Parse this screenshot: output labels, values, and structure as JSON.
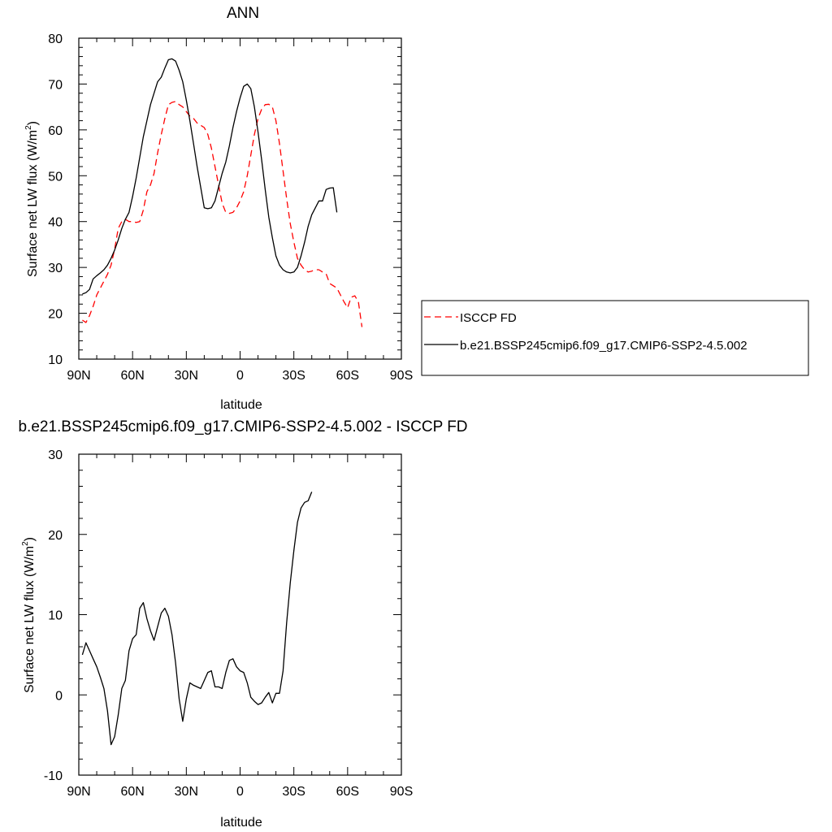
{
  "colors": {
    "obs": "#ff0000",
    "model": "#000000"
  },
  "chart_data": [
    {
      "type": "line",
      "title": "ANN",
      "xlabel": "latitude",
      "ylabel": "Surface net LW flux (W/m",
      "ylabel_sup": "2",
      "ylabel_close": ")",
      "xlim": [
        90,
        -90
      ],
      "ylim": [
        10,
        80
      ],
      "xticks": [
        90,
        60,
        30,
        0,
        -30,
        -60,
        -90
      ],
      "xtick_labels": [
        "90N",
        "60N",
        "30N",
        "0",
        "30S",
        "60S",
        "90S"
      ],
      "yticks": [
        10,
        20,
        30,
        40,
        50,
        60,
        70,
        80
      ],
      "ytick_labels": [
        "10",
        "20",
        "30",
        "40",
        "50",
        "60",
        "70",
        "80"
      ],
      "legend": {
        "placement": "right"
      },
      "series": [
        {
          "name": "ISCCP FD",
          "style": "dashed",
          "color": "#ff0000",
          "x": [
            88,
            86,
            84,
            82,
            80,
            78,
            76,
            74,
            72,
            70,
            68,
            66,
            64,
            62,
            60,
            58,
            56,
            54,
            52,
            50,
            48,
            46,
            44,
            42,
            40,
            38,
            36,
            34,
            32,
            30,
            28,
            26,
            24,
            22,
            20,
            18,
            16,
            14,
            12,
            10,
            8,
            6,
            4,
            2,
            0,
            -2,
            -4,
            -6,
            -8,
            -10,
            -12,
            -14,
            -16,
            -18,
            -20,
            -22,
            -24,
            -26,
            -28,
            -30,
            -32,
            -34,
            -36,
            -38,
            -40,
            -42,
            -44,
            -46,
            -48,
            -50,
            -52,
            -54,
            -56,
            -58,
            -60,
            -62,
            -64,
            -66,
            -68,
            -70,
            -72,
            -74,
            -76,
            -78,
            -80,
            -82,
            -84,
            -86,
            -88
          ],
          "values": [
            18.5,
            18.0,
            19.5,
            21.5,
            24.0,
            25.5,
            27.0,
            28.5,
            30.5,
            34.0,
            38.5,
            40.0,
            40.5,
            40.0,
            40.0,
            39.8,
            40.0,
            42.5,
            46.5,
            48.0,
            50.5,
            55.0,
            59.0,
            62.5,
            65.5,
            66.0,
            66.2,
            65.5,
            65.0,
            64.0,
            63.0,
            62.5,
            61.5,
            61.0,
            60.5,
            59.0,
            56.0,
            52.0,
            48.0,
            44.0,
            42.0,
            41.8,
            42.0,
            43.0,
            44.5,
            46.5,
            50.0,
            54.5,
            59.0,
            62.5,
            64.5,
            65.5,
            65.6,
            65.0,
            62.0,
            57.0,
            51.0,
            45.0,
            39.5,
            35.5,
            32.0,
            30.5,
            29.5,
            29.0,
            29.2,
            29.5,
            29.5,
            29.0,
            28.6,
            26.5,
            26.0,
            25.5,
            24.0,
            22.5,
            21.2,
            23.5,
            23.8,
            22.5,
            17.0,
            null,
            null,
            null,
            null,
            null,
            null,
            null,
            null,
            null,
            null
          ]
        },
        {
          "name": "b.e21.BSSP245cmip6.f09_g17.CMIP6-SSP2-4.5.002",
          "style": "solid",
          "color": "#000000",
          "x": [
            88,
            86,
            84,
            82,
            80,
            78,
            76,
            74,
            72,
            70,
            68,
            66,
            64,
            62,
            60,
            58,
            56,
            54,
            52,
            50,
            48,
            46,
            44,
            42,
            40,
            38,
            36,
            34,
            32,
            30,
            28,
            26,
            24,
            22,
            20,
            18,
            16,
            14,
            12,
            10,
            8,
            6,
            4,
            2,
            0,
            -2,
            -4,
            -6,
            -8,
            -10,
            -12,
            -14,
            -16,
            -18,
            -20,
            -22,
            -24,
            -26,
            -28,
            -30,
            -32,
            -34,
            -36,
            -38,
            -40,
            -42,
            -44,
            -46,
            -48,
            -50,
            -52,
            -54,
            -56,
            -58,
            -60,
            -62,
            -64,
            -66,
            -68,
            -70,
            -72,
            -74,
            -76,
            -78,
            -80,
            -82,
            -84,
            -86,
            -88
          ],
          "values": [
            24.2,
            24.5,
            25.2,
            27.5,
            28.2,
            28.8,
            29.5,
            30.5,
            32.0,
            33.8,
            36.0,
            38.5,
            40.5,
            42.0,
            45.5,
            49.5,
            54.0,
            58.5,
            62.0,
            65.5,
            68.0,
            70.5,
            71.5,
            73.5,
            75.3,
            75.5,
            75.0,
            73.0,
            70.5,
            66.5,
            62.0,
            57.0,
            52.0,
            47.5,
            43.0,
            42.8,
            43.0,
            44.5,
            47.5,
            50.5,
            53.0,
            56.5,
            60.5,
            64.0,
            67.0,
            69.5,
            70.0,
            69.0,
            65.0,
            59.5,
            53.5,
            47.0,
            41.0,
            36.5,
            32.5,
            30.5,
            29.5,
            29.0,
            28.8,
            29.0,
            30.0,
            32.5,
            35.5,
            39.0,
            41.5,
            43.0,
            44.5,
            44.5,
            47.0,
            47.3,
            47.4,
            42.0,
            null,
            null,
            null,
            null,
            null,
            null,
            null,
            null,
            null,
            null,
            null,
            null,
            null,
            null,
            null,
            null,
            null
          ]
        }
      ]
    },
    {
      "type": "line",
      "title": "b.e21.BSSP245cmip6.f09_g17.CMIP6-SSP2-4.5.002 - ISCCP FD",
      "xlabel": "latitude",
      "ylabel": "Surface net LW flux (W/m",
      "ylabel_sup": "2",
      "ylabel_close": ")",
      "xlim": [
        90,
        -90
      ],
      "ylim": [
        -10,
        30
      ],
      "xticks": [
        90,
        60,
        30,
        0,
        -30,
        -60,
        -90
      ],
      "xtick_labels": [
        "90N",
        "60N",
        "30N",
        "0",
        "30S",
        "60S",
        "90S"
      ],
      "yticks": [
        -10,
        0,
        10,
        20,
        30
      ],
      "ytick_labels": [
        "-10",
        "0",
        "10",
        "20",
        "30"
      ],
      "series": [
        {
          "style": "solid",
          "color": "#000000",
          "x": [
            88,
            86,
            84,
            82,
            80,
            78,
            76,
            74,
            72,
            70,
            68,
            66,
            64,
            62,
            60,
            58,
            56,
            54,
            52,
            50,
            48,
            46,
            44,
            42,
            40,
            38,
            36,
            34,
            32,
            30,
            28,
            26,
            24,
            22,
            20,
            18,
            16,
            14,
            12,
            10,
            8,
            6,
            4,
            2,
            0,
            -2,
            -4,
            -6,
            -8,
            -10,
            -12,
            -14,
            -16,
            -18,
            -20,
            -22,
            -24,
            -26,
            -28,
            -30,
            -32,
            -34,
            -36,
            -38,
            -40,
            -42,
            -44,
            -46,
            -48,
            -50,
            -52,
            -54,
            -56,
            -58,
            -60,
            -62,
            -64,
            -66,
            -68,
            -70,
            -72,
            -74,
            -76,
            -78,
            -80,
            -82,
            -84,
            -86,
            -88
          ],
          "values": [
            5.0,
            6.5,
            5.5,
            4.5,
            3.5,
            2.2,
            0.8,
            -2.0,
            -6.2,
            -5.2,
            -2.5,
            0.8,
            1.8,
            5.5,
            7.0,
            7.5,
            10.8,
            11.5,
            9.5,
            8.0,
            6.8,
            8.5,
            10.2,
            10.8,
            9.8,
            7.5,
            4.0,
            -0.5,
            -3.3,
            -0.5,
            1.5,
            1.2,
            1.0,
            0.8,
            1.8,
            2.8,
            3.0,
            1.0,
            1.0,
            0.8,
            2.8,
            4.3,
            4.5,
            3.5,
            3.0,
            2.8,
            1.5,
            -0.3,
            -0.8,
            -1.2,
            -1.0,
            -0.3,
            0.3,
            -1.0,
            0.2,
            0.2,
            3.0,
            9.0,
            14.0,
            18.0,
            21.5,
            23.3,
            24.0,
            24.2,
            25.3,
            null,
            null,
            null,
            null,
            null,
            null,
            null,
            null,
            null,
            null,
            null,
            null,
            null,
            null,
            null,
            null,
            null,
            null,
            null,
            null,
            null,
            null,
            null,
            null
          ]
        }
      ]
    }
  ]
}
